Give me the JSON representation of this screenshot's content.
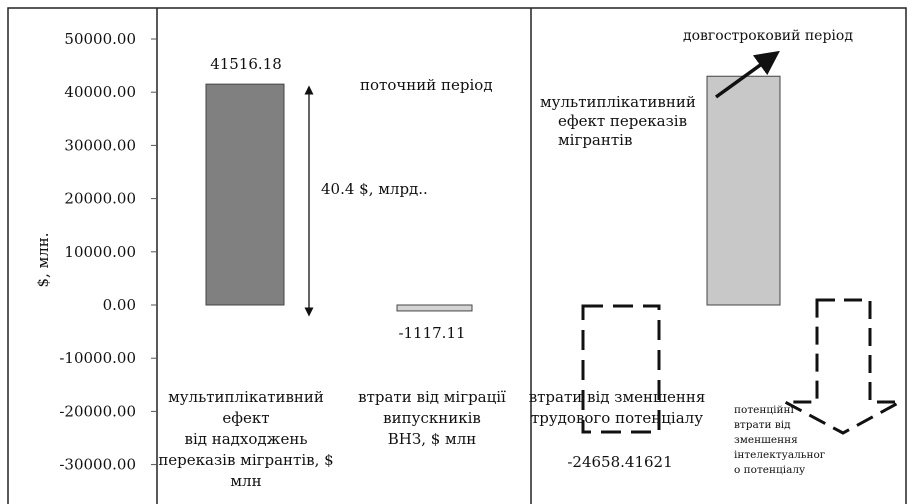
{
  "chart_data": {
    "type": "bar",
    "ylabel": "$, млн.",
    "yticks": [
      50000,
      40000,
      30000,
      20000,
      10000,
      0,
      -10000,
      -20000,
      -30000
    ],
    "ytick_labels": [
      "50000.00",
      "40000.00",
      "30000.00",
      "20000.00",
      "10000.00",
      "0.00",
      "-10000.00",
      "-20000.00",
      "-30000.00"
    ],
    "ylim": [
      -35000,
      55000
    ],
    "bars": [
      {
        "value": 41516.18,
        "value_label": "41516.18",
        "color": "#808080",
        "category_lines": [
          "мультиплікативний",
          "ефект",
          "від надходжень",
          "переказів мігрантів, $",
          "млн"
        ]
      },
      {
        "value": -1117.11,
        "value_label": "-1117.11",
        "color": "#d4d4d4",
        "category_lines": [
          "втрати від міграції",
          "випускників",
          "ВНЗ, $ млн"
        ]
      },
      {
        "value": -24658.41621,
        "value_label": "-24658.41621",
        "style": "dashed",
        "category_lines": [
          "втрати від зменшення",
          "трудового потенціалу"
        ]
      },
      {
        "value": 43000,
        "color": "#c8c8c8",
        "category_lines": [
          "мультиплікативний",
          "ефект переказів",
          "мігрантів"
        ]
      },
      {
        "style": "dashed-arrow",
        "category_lines": [
          "потенційні",
          "втрати від",
          "зменшення",
          "інтелектуальног",
          "о потенціалу"
        ]
      }
    ],
    "annotations": {
      "current_period": "поточний період",
      "long_term_period": "довгостроковий період",
      "difference": "40.4 $, млрд.."
    },
    "colors": {
      "frame": "#222222",
      "dark_bar": "#808080",
      "light_bar": "#c8c8c8"
    }
  }
}
